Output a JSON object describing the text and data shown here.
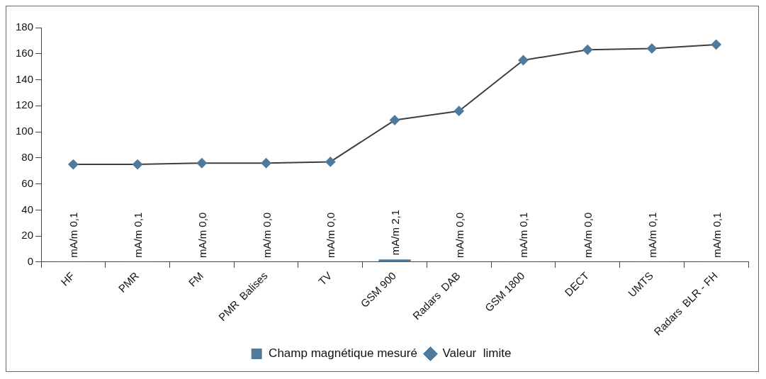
{
  "chart_data": {
    "type": "bar",
    "categories": [
      "HF",
      "PMR",
      "FM",
      "PMR  Balises",
      "TV",
      "GSM 900",
      "Radars  DAB",
      "GSM 1800",
      "DECT",
      "UMTS",
      "Radars  BLR - FH"
    ],
    "series": [
      {
        "name": "Champ magnétique mesuré",
        "color": "#4f7a9c",
        "values": [
          0.1,
          0.1,
          0.0,
          0.0,
          0.0,
          2.1,
          0.0,
          0.1,
          0.0,
          0.1,
          0.1
        ],
        "value_labels": [
          "mA/m 0,1",
          "mA/m 0,1",
          "mA/m 0,0",
          "mA/m 0,0",
          "mA/m 0,0",
          "mA/m 2,1",
          "mA/m 0,0",
          "mA/m 0,1",
          "mA/m 0,0",
          "mA/m 0,1",
          "mA/m 0,1"
        ]
      },
      {
        "name": "Valeur  limite",
        "type": "line",
        "color": "#3a3f45",
        "values": [
          75,
          75,
          76,
          76,
          77,
          109,
          116,
          155,
          163,
          164,
          167
        ]
      }
    ],
    "ylim": [
      0,
      180
    ],
    "yticks": [
      0,
      20,
      40,
      60,
      80,
      100,
      120,
      140,
      160,
      180
    ],
    "grid": false,
    "legend": "bottom",
    "marker": "diamond",
    "line_style": "solid"
  }
}
